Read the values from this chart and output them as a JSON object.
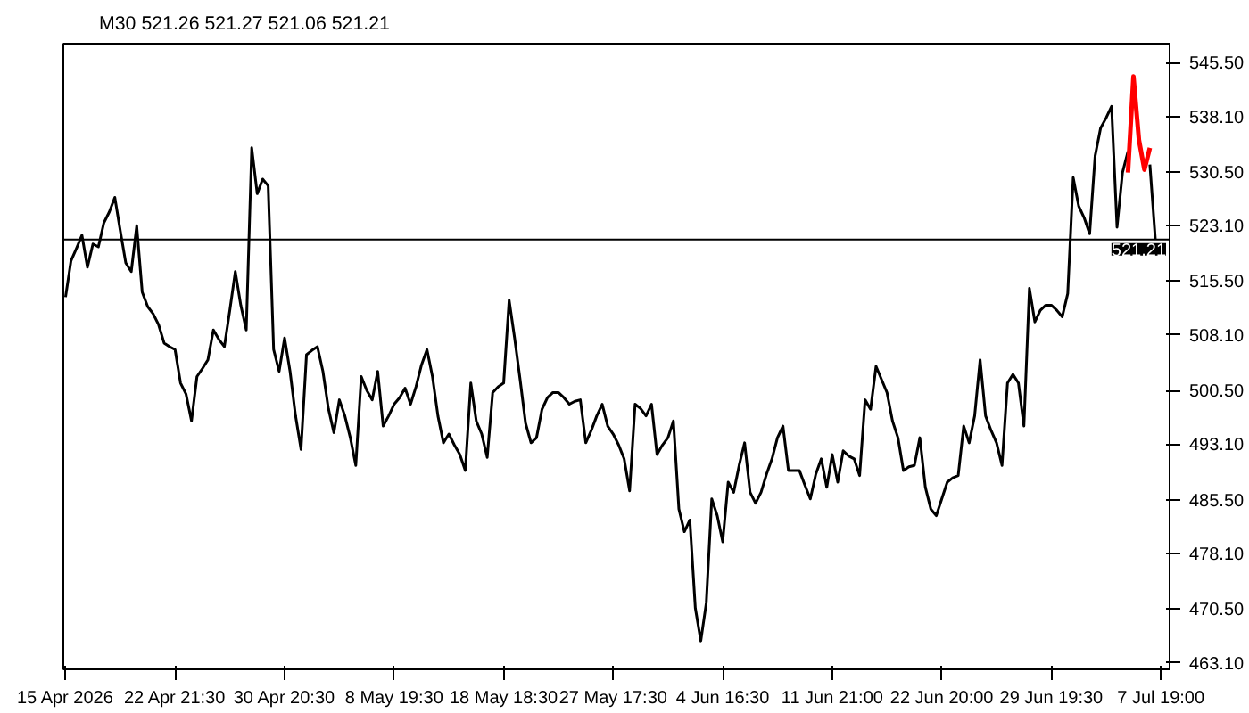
{
  "chart_data": {
    "type": "line",
    "title": "M30  521.26 521.27 521.06 521.21",
    "categories": [
      "15 Apr 2026",
      null,
      null,
      null,
      null,
      null,
      null,
      null,
      null,
      null,
      null,
      null,
      null,
      null,
      null,
      null,
      null,
      null,
      null,
      null,
      "22 Apr 21:30",
      null,
      null,
      null,
      null,
      null,
      null,
      null,
      null,
      null,
      null,
      null,
      null,
      null,
      null,
      null,
      null,
      null,
      null,
      null,
      "30 Apr 20:30",
      null,
      null,
      null,
      null,
      null,
      null,
      null,
      null,
      null,
      null,
      null,
      null,
      null,
      null,
      null,
      null,
      null,
      null,
      null,
      "8 May 19:30",
      null,
      null,
      null,
      null,
      null,
      null,
      null,
      null,
      null,
      null,
      null,
      null,
      null,
      null,
      null,
      null,
      null,
      null,
      null,
      "18 May 18:30",
      null,
      null,
      null,
      null,
      null,
      null,
      null,
      null,
      null,
      null,
      null,
      null,
      null,
      null,
      null,
      null,
      null,
      null,
      null,
      "27 May 17:30",
      null,
      null,
      null,
      null,
      null,
      null,
      null,
      null,
      null,
      null,
      null,
      null,
      null,
      null,
      null,
      null,
      null,
      null,
      null,
      "4 Jun 16:30",
      null,
      null,
      null,
      null,
      null,
      null,
      null,
      null,
      null,
      null,
      null,
      null,
      null,
      null,
      null,
      null,
      null,
      null,
      null,
      "11 Jun 21:00",
      null,
      null,
      null,
      null,
      null,
      null,
      null,
      null,
      null,
      null,
      null,
      null,
      null,
      null,
      null,
      null,
      null,
      null,
      null,
      "22 Jun 20:00",
      null,
      null,
      null,
      null,
      null,
      null,
      null,
      null,
      null,
      null,
      null,
      null,
      null,
      null,
      null,
      null,
      null,
      null,
      null,
      "29 Jun 19:30",
      null,
      null,
      null,
      null,
      null,
      null,
      null,
      null,
      null,
      null,
      null,
      null,
      null,
      null,
      null,
      null,
      null,
      null,
      null,
      "7 Jul 19:00"
    ],
    "ylim": [
      462.2,
      548.1
    ],
    "yticks": [
      {
        "value": 463.1,
        "label": "463.10"
      },
      {
        "value": 470.5,
        "label": "470.50"
      },
      {
        "value": 478.1,
        "label": "478.10"
      },
      {
        "value": 485.5,
        "label": "485.50"
      },
      {
        "value": 493.1,
        "label": "493.10"
      },
      {
        "value": 500.5,
        "label": "500.50"
      },
      {
        "value": 508.1,
        "label": "508.10"
      },
      {
        "value": 515.5,
        "label": "515.50"
      },
      {
        "value": 523.1,
        "label": "523.10"
      },
      {
        "value": 530.5,
        "label": "530.50"
      },
      {
        "value": 538.1,
        "label": "538.10"
      },
      {
        "value": 545.5,
        "label": "545.50"
      }
    ],
    "grid": false,
    "ref_lines": [
      {
        "axis": "y",
        "value": 521.21,
        "label": "521.21",
        "color": "#000000"
      }
    ],
    "series": [
      {
        "color": "#000000",
        "values": [
          513.3,
          518.3,
          520.0,
          521.8,
          517.4,
          520.6,
          520.2,
          523.5,
          525.0,
          527.0,
          522.4,
          518.0,
          516.8,
          523.1,
          514.0,
          512.0,
          511.0,
          509.5,
          507.0,
          506.5,
          506.1,
          501.5,
          500.0,
          496.3,
          502.4,
          503.5,
          504.7,
          508.8,
          507.5,
          506.5,
          511.5,
          516.8,
          512.2,
          508.8,
          533.8,
          527.5,
          529.5,
          528.6,
          506.1,
          503.1,
          507.7,
          503.1,
          497.0,
          492.4,
          505.4,
          506.0,
          506.5,
          503.1,
          498.0,
          494.7,
          499.2,
          497.0,
          494.0,
          490.2,
          502.4,
          500.5,
          499.2,
          503.1,
          495.6,
          497.0,
          498.6,
          499.5,
          500.8,
          498.6,
          501.0,
          504.0,
          506.1,
          502.4,
          497.0,
          493.3,
          494.5,
          493.0,
          491.7,
          489.5,
          501.5,
          496.3,
          494.5,
          491.3,
          500.2,
          501.0,
          501.5,
          512.9,
          507.7,
          502.0,
          496.0,
          493.3,
          494.0,
          497.9,
          499.5,
          500.2,
          500.2,
          499.5,
          498.6,
          499.0,
          499.2,
          493.3,
          495.0,
          497.0,
          498.6,
          495.6,
          494.5,
          493.0,
          491.1,
          486.7,
          498.6,
          498.0,
          497.0,
          498.6,
          491.7,
          493.0,
          494.0,
          496.3,
          484.2,
          481.1,
          482.7,
          470.6,
          466.1,
          471.3,
          485.6,
          483.3,
          479.7,
          487.9,
          486.5,
          490.2,
          493.3,
          486.5,
          485.0,
          486.5,
          489.0,
          491.1,
          494.0,
          495.6,
          489.5,
          489.5,
          489.5,
          487.5,
          485.6,
          489.0,
          491.1,
          487.2,
          491.7,
          487.9,
          492.2,
          491.5,
          491.1,
          488.8,
          499.2,
          497.9,
          503.8,
          502.0,
          500.2,
          496.3,
          494.0,
          489.5,
          490.0,
          490.2,
          494.0,
          487.2,
          484.2,
          483.3,
          485.6,
          487.9,
          488.5,
          488.8,
          495.6,
          493.3,
          497.0,
          504.7,
          497.0,
          495.0,
          493.3,
          490.2,
          501.5,
          502.7,
          501.5,
          495.6,
          514.5,
          509.9,
          511.5,
          512.2,
          512.2,
          511.5,
          510.6,
          513.8,
          529.7,
          525.8,
          524.2,
          522.0,
          532.7,
          536.5,
          537.9,
          539.5,
          522.9,
          530.4,
          533.3,
          null,
          null,
          null,
          531.5,
          521.2,
          null
        ]
      },
      {
        "color": "#ff0000",
        "values": [
          null,
          null,
          null,
          null,
          null,
          null,
          null,
          null,
          null,
          null,
          null,
          null,
          null,
          null,
          null,
          null,
          null,
          null,
          null,
          null,
          null,
          null,
          null,
          null,
          null,
          null,
          null,
          null,
          null,
          null,
          null,
          null,
          null,
          null,
          null,
          null,
          null,
          null,
          null,
          null,
          null,
          null,
          null,
          null,
          null,
          null,
          null,
          null,
          null,
          null,
          null,
          null,
          null,
          null,
          null,
          null,
          null,
          null,
          null,
          null,
          null,
          null,
          null,
          null,
          null,
          null,
          null,
          null,
          null,
          null,
          null,
          null,
          null,
          null,
          null,
          null,
          null,
          null,
          null,
          null,
          null,
          null,
          null,
          null,
          null,
          null,
          null,
          null,
          null,
          null,
          null,
          null,
          null,
          null,
          null,
          null,
          null,
          null,
          null,
          null,
          null,
          null,
          null,
          null,
          null,
          null,
          null,
          null,
          null,
          null,
          null,
          null,
          null,
          null,
          null,
          null,
          null,
          null,
          null,
          null,
          null,
          null,
          null,
          null,
          null,
          null,
          null,
          null,
          null,
          null,
          null,
          null,
          null,
          null,
          null,
          null,
          null,
          null,
          null,
          null,
          null,
          null,
          null,
          null,
          null,
          null,
          null,
          null,
          null,
          null,
          null,
          null,
          null,
          null,
          null,
          null,
          null,
          null,
          null,
          null,
          null,
          null,
          null,
          null,
          null,
          null,
          null,
          null,
          null,
          null,
          null,
          null,
          null,
          null,
          null,
          null,
          null,
          null,
          null,
          null,
          null,
          null,
          null,
          null,
          null,
          null,
          null,
          null,
          null,
          null,
          null,
          null,
          null,
          null,
          530.4,
          543.6,
          534.9,
          530.8,
          533.8,
          null,
          null
        ]
      }
    ]
  }
}
